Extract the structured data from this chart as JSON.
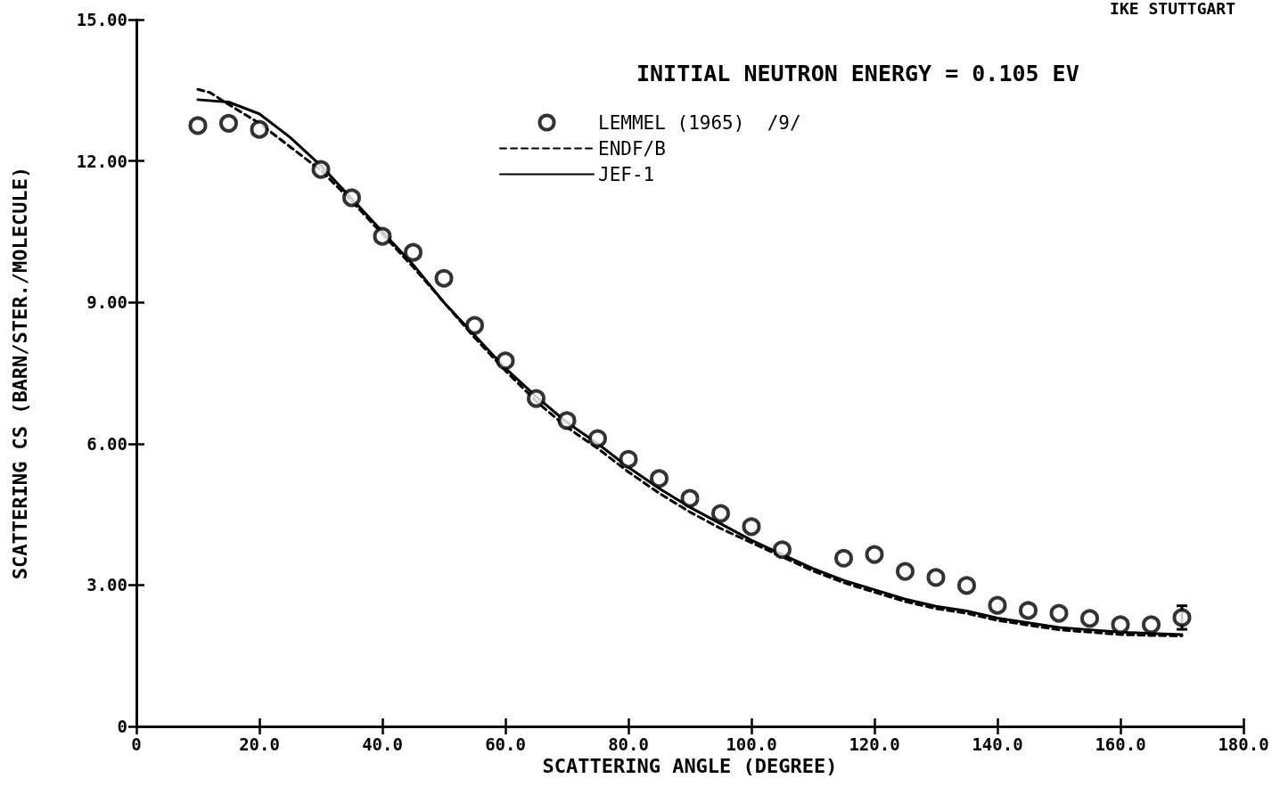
{
  "chart_data": {
    "type": "scatter",
    "xlabel": "SCATTERING ANGLE (DEGREE)",
    "ylabel": "SCATTERING CS (BARN/STER./MOLECULE)",
    "annotations": [
      "IKE STUTTGART",
      "INITIAL NEUTRON ENERGY = 0.105 EV"
    ],
    "xlim": [
      0,
      180
    ],
    "xticks": [
      0,
      {
        "value": 20,
        "label": "20.0"
      },
      {
        "value": 40,
        "label": "40.0"
      },
      {
        "value": 60,
        "label": "60.0"
      },
      {
        "value": 80,
        "label": "80.0"
      },
      {
        "value": 100,
        "label": "100.0"
      },
      {
        "value": 120,
        "label": "120.0"
      },
      {
        "value": 140,
        "label": "140.0"
      },
      {
        "value": 160,
        "label": "160.0"
      },
      {
        "value": 180,
        "label": "180.0"
      }
    ],
    "ylim": [
      0,
      15
    ],
    "yticks": [
      0,
      {
        "value": 3,
        "label": "3.00"
      },
      {
        "value": 6,
        "label": "6.00"
      },
      {
        "value": 9,
        "label": "9.00"
      },
      {
        "value": 12,
        "label": "12.00"
      },
      {
        "value": 15,
        "label": "15.00"
      }
    ],
    "grid": false,
    "legend": "top",
    "series": [
      {
        "name": "LEMMEL (1965)  /9/",
        "marker": "circle",
        "color": "#000000",
        "x": [
          10,
          15,
          20,
          30,
          35,
          40,
          45,
          50,
          55,
          60,
          65,
          70,
          75,
          80,
          85,
          90,
          95,
          100,
          105,
          115,
          120,
          125,
          130,
          135,
          140,
          145,
          150,
          155,
          160,
          165,
          170
        ],
        "values": [
          12.75,
          12.8,
          12.67,
          11.82,
          11.22,
          10.4,
          10.06,
          9.51,
          8.51,
          7.76,
          6.96,
          6.49,
          6.11,
          5.67,
          5.26,
          4.84,
          4.52,
          4.24,
          3.75,
          3.57,
          3.65,
          3.29,
          3.16,
          2.99,
          2.57,
          2.46,
          2.4,
          2.29,
          2.16,
          2.16,
          2.31
        ],
        "errors": [
          null,
          null,
          null,
          null,
          null,
          null,
          null,
          null,
          null,
          null,
          null,
          null,
          null,
          null,
          null,
          null,
          null,
          null,
          null,
          null,
          null,
          null,
          null,
          null,
          null,
          null,
          null,
          null,
          null,
          null,
          0.25
        ]
      },
      {
        "name": "ENDF/B",
        "type": "line",
        "marker": "none",
        "line_style": "dashed",
        "color": "#000000",
        "x": [
          10,
          12,
          15,
          20,
          25,
          30,
          35,
          40,
          45,
          50,
          55,
          60,
          65,
          70,
          75,
          80,
          85,
          90,
          95,
          100,
          105,
          110,
          115,
          120,
          125,
          130,
          135,
          140,
          145,
          150,
          155,
          160,
          165,
          170
        ],
        "values": [
          13.52,
          13.45,
          13.2,
          12.8,
          12.3,
          11.8,
          11.15,
          10.45,
          9.75,
          9.0,
          8.25,
          7.55,
          6.9,
          6.35,
          5.9,
          5.4,
          4.95,
          4.55,
          4.2,
          3.9,
          3.6,
          3.3,
          3.05,
          2.85,
          2.65,
          2.5,
          2.4,
          2.25,
          2.15,
          2.05,
          2.0,
          1.95,
          1.93,
          1.92
        ]
      },
      {
        "name": "JEF-1",
        "type": "line",
        "marker": "none",
        "line_style": "solid",
        "color": "#000000",
        "x": [
          10,
          15,
          20,
          25,
          30,
          35,
          40,
          45,
          50,
          55,
          60,
          65,
          70,
          75,
          80,
          85,
          90,
          95,
          100,
          105,
          110,
          115,
          120,
          125,
          130,
          135,
          140,
          145,
          150,
          155,
          160,
          165,
          170
        ],
        "values": [
          13.3,
          13.25,
          13.0,
          12.5,
          11.9,
          11.2,
          10.5,
          9.8,
          9.0,
          8.3,
          7.6,
          7.0,
          6.45,
          6.0,
          5.5,
          5.05,
          4.65,
          4.3,
          3.95,
          3.65,
          3.35,
          3.1,
          2.9,
          2.7,
          2.55,
          2.45,
          2.3,
          2.2,
          2.1,
          2.05,
          2.0,
          1.97,
          1.95
        ]
      }
    ]
  }
}
